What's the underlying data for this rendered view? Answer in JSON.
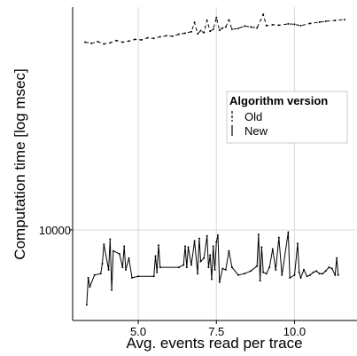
{
  "chart_data": {
    "type": "line",
    "xlabel": "Avg. events read per trace",
    "ylabel": "Computation time [log msec]",
    "x_ticks": [
      5.0,
      7.5,
      10.0
    ],
    "x_tick_labels": [
      "5.0",
      "7.5",
      "10.0"
    ],
    "y_ticks": [
      10000
    ],
    "y_tick_labels": [
      "10000"
    ],
    "xlim": [
      2.9,
      12.0
    ],
    "y_scale": "log",
    "ylim": [
      2900,
      210000
    ],
    "grid": true,
    "legend": {
      "title": "Algorithm version",
      "position": "top-right",
      "entries": [
        "Old",
        "New"
      ]
    },
    "series": [
      {
        "name": "Old",
        "style": "dashed",
        "color": "#000000",
        "x": [
          3.3,
          3.5,
          3.7,
          3.9,
          4.1,
          4.3,
          4.5,
          4.7,
          4.9,
          5.1,
          5.3,
          5.5,
          5.7,
          5.9,
          6.1,
          6.3,
          6.5,
          6.7,
          6.8,
          6.9,
          7.0,
          7.1,
          7.2,
          7.3,
          7.4,
          7.5,
          7.6,
          7.7,
          7.8,
          7.9,
          8.0,
          8.2,
          8.4,
          8.6,
          8.8,
          9.0,
          9.1,
          9.3,
          9.5,
          9.8,
          10.0,
          10.2,
          10.5,
          10.8,
          11.0,
          11.3,
          11.6
        ],
        "y": [
          130000,
          128000,
          131000,
          127000,
          129000,
          133000,
          130000,
          132000,
          135000,
          134000,
          138000,
          137000,
          140000,
          142000,
          141000,
          145000,
          147000,
          150000,
          170000,
          146000,
          152000,
          148000,
          175000,
          151000,
          155000,
          182000,
          153000,
          158000,
          160000,
          176000,
          155000,
          157000,
          162000,
          160000,
          158000,
          190000,
          163000,
          165000,
          164000,
          167000,
          166000,
          163000,
          168000,
          171000,
          173000,
          175000,
          177000
        ]
      },
      {
        "name": "New",
        "style": "solid",
        "color": "#000000",
        "x": [
          3.35,
          3.4,
          3.45,
          3.6,
          3.8,
          3.85,
          3.9,
          4.05,
          4.1,
          4.15,
          4.2,
          4.4,
          4.5,
          4.55,
          4.6,
          4.7,
          4.8,
          5.0,
          5.5,
          5.55,
          5.6,
          5.65,
          5.7,
          6.3,
          6.45,
          6.5,
          6.55,
          6.6,
          6.7,
          6.8,
          6.9,
          6.95,
          7.0,
          7.1,
          7.2,
          7.25,
          7.3,
          7.35,
          7.4,
          7.45,
          7.5,
          7.55,
          7.6,
          7.7,
          7.8,
          7.9,
          8.0,
          8.2,
          8.4,
          8.6,
          8.8,
          8.85,
          8.9,
          8.95,
          9.0,
          9.1,
          9.2,
          9.3,
          9.4,
          9.5,
          9.6,
          9.8,
          9.85,
          10.0,
          10.1,
          10.15,
          10.2,
          10.3,
          10.4,
          10.5,
          10.6,
          10.7,
          10.8,
          10.9,
          11.0,
          11.1,
          11.2,
          11.3,
          11.35,
          11.4
        ],
        "y": [
          3600,
          5200,
          4600,
          5400,
          5500,
          6300,
          8200,
          5800,
          8800,
          4400,
          7500,
          7200,
          6000,
          8000,
          5800,
          6800,
          5200,
          5300,
          5300,
          7000,
          5600,
          8100,
          6000,
          6000,
          6200,
          8000,
          6000,
          7900,
          6200,
          8600,
          5500,
          8900,
          6500,
          6800,
          9200,
          6000,
          7100,
          5100,
          8000,
          5800,
          8500,
          9300,
          4900,
          5900,
          5800,
          7500,
          6000,
          5400,
          5500,
          5700,
          6100,
          9400,
          5000,
          7900,
          5600,
          5500,
          6000,
          7700,
          5800,
          9000,
          5400,
          9700,
          5200,
          5400,
          8300,
          5600,
          5200,
          5800,
          5300,
          5400,
          5600,
          5700,
          5500,
          5500,
          5700,
          6000,
          5900,
          5400,
          6800,
          5400
        ]
      }
    ]
  }
}
